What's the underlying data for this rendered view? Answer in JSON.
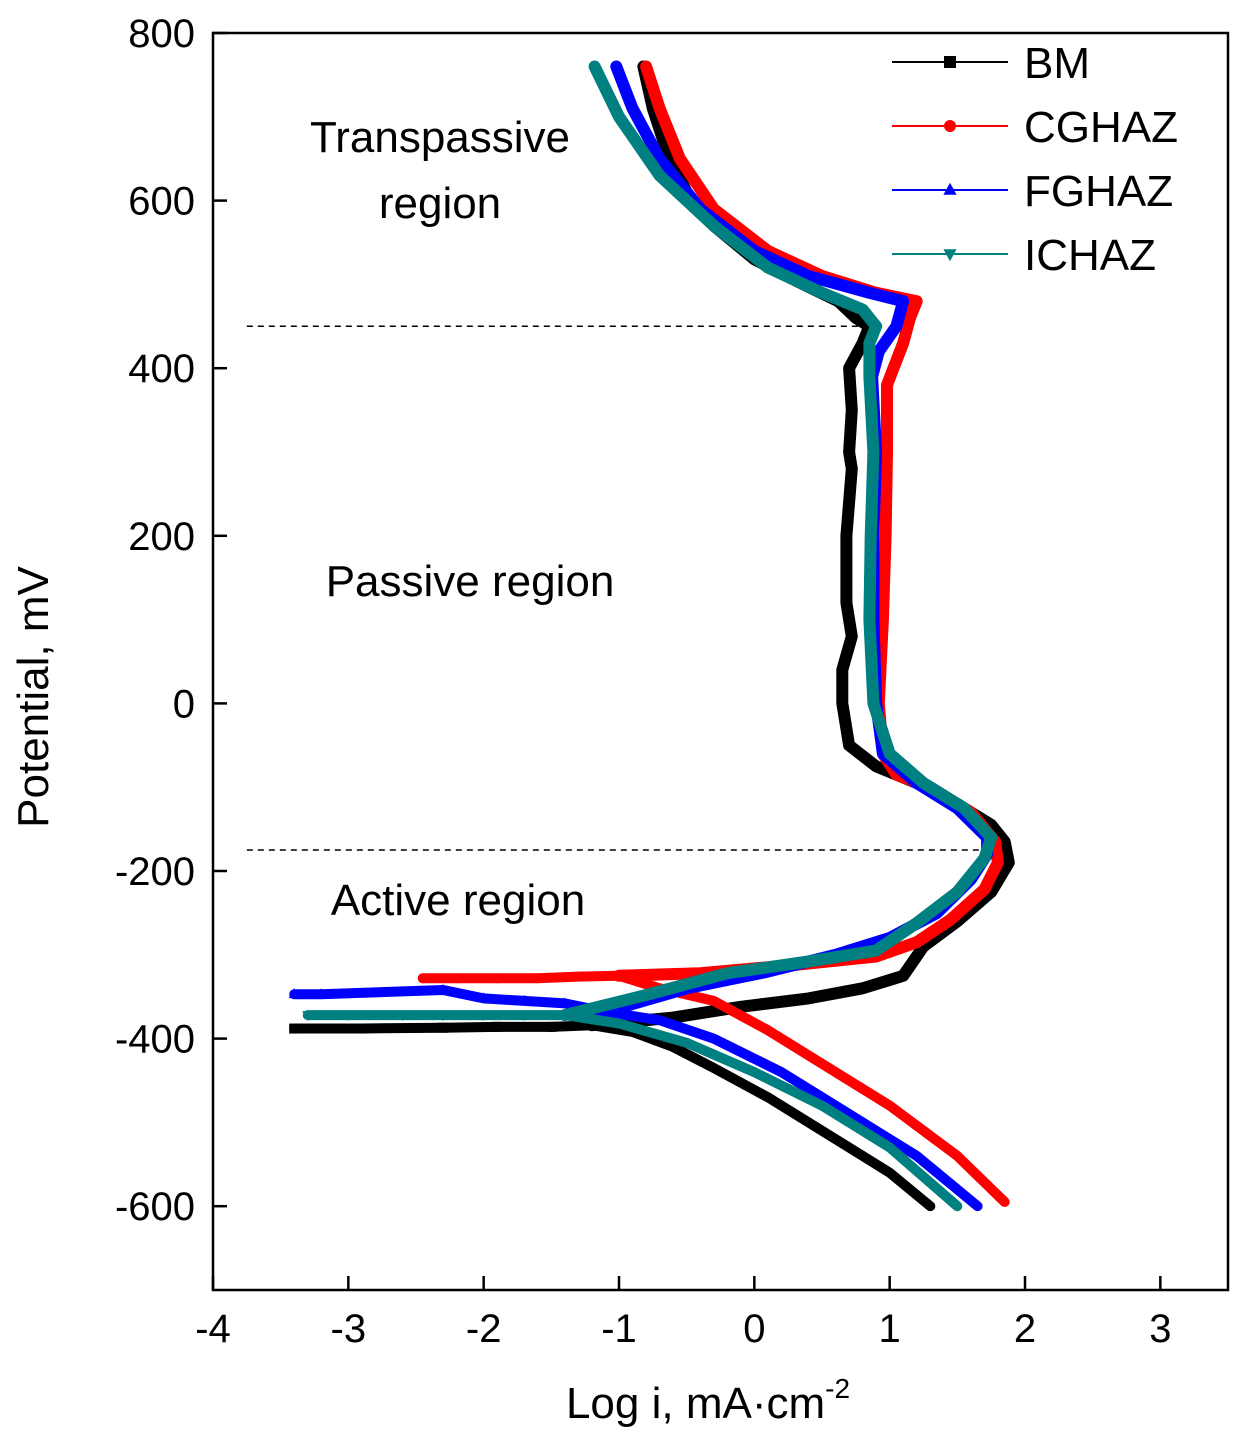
{
  "chart_data": {
    "type": "line",
    "title": "",
    "xlabel": "Log i, mA·cm",
    "xlabel_superscript": "-2",
    "ylabel": "Potential, mV",
    "xlim": [
      -4,
      3.5
    ],
    "ylim": [
      -700,
      800
    ],
    "xticks": [
      -4,
      -3,
      -2,
      -1,
      0,
      1,
      2,
      3
    ],
    "yticks": [
      -600,
      -400,
      -200,
      0,
      200,
      400,
      600,
      800
    ],
    "xtick_labels": [
      "-4",
      "-3",
      "-2",
      "-1",
      "0",
      "1",
      "2",
      "3"
    ],
    "ytick_labels": [
      "-600",
      "-400",
      "-200",
      "0",
      "200",
      "400",
      "600",
      "800"
    ],
    "grid": false,
    "legend_position": "top-right",
    "reference_lines": [
      {
        "style": "dashed",
        "y": 450,
        "x_from": -3.75,
        "x_to": 0.9
      },
      {
        "style": "dashed",
        "y": -175,
        "x_from": -3.75,
        "x_to": 1.75
      }
    ],
    "annotations": [
      {
        "text": "Transpassive",
        "x": -2.2,
        "y": 670
      },
      {
        "text": "region",
        "x": -2.2,
        "y": 590
      },
      {
        "text": "Passive region",
        "x": -2.2,
        "y": 140
      },
      {
        "text": "Active region",
        "x": -2.2,
        "y": -240
      }
    ],
    "series": [
      {
        "name": "BM",
        "color": "#000000",
        "marker": "square",
        "points": [
          [
            -3.4,
            -388
          ],
          [
            -2.9,
            -388
          ],
          [
            -2.3,
            -387
          ],
          [
            -1.9,
            -386
          ],
          [
            -1.5,
            -386
          ],
          [
            -1.2,
            -384
          ],
          [
            -0.9,
            -392
          ],
          [
            -0.6,
            -410
          ],
          [
            -0.3,
            -435
          ],
          [
            0.1,
            -470
          ],
          [
            0.4,
            -500
          ],
          [
            0.7,
            -530
          ],
          [
            1.0,
            -560
          ],
          [
            1.3,
            -600
          ],
          [
            1.3,
            -600
          ]
        ],
        "anodic": [
          [
            -1.2,
            -384
          ],
          [
            -0.6,
            -375
          ],
          [
            -0.1,
            -362
          ],
          [
            0.4,
            -352
          ],
          [
            0.8,
            -340
          ],
          [
            1.1,
            -325
          ],
          [
            1.25,
            -290
          ],
          [
            1.5,
            -260
          ],
          [
            1.75,
            -225
          ],
          [
            1.88,
            -190
          ],
          [
            1.85,
            -165
          ],
          [
            1.75,
            -145
          ],
          [
            1.5,
            -120
          ],
          [
            1.2,
            -95
          ],
          [
            0.9,
            -75
          ],
          [
            0.7,
            -50
          ],
          [
            0.65,
            0
          ],
          [
            0.65,
            40
          ],
          [
            0.72,
            80
          ],
          [
            0.68,
            120
          ],
          [
            0.68,
            200
          ],
          [
            0.72,
            280
          ],
          [
            0.7,
            300
          ],
          [
            0.72,
            350
          ],
          [
            0.7,
            400
          ],
          [
            0.8,
            430
          ],
          [
            0.85,
            450
          ],
          [
            0.75,
            460
          ],
          [
            0.62,
            480
          ],
          [
            0.3,
            505
          ],
          [
            0,
            530
          ],
          [
            -0.3,
            570
          ],
          [
            -0.5,
            610
          ],
          [
            -0.65,
            660
          ],
          [
            -0.75,
            710
          ],
          [
            -0.82,
            760
          ]
        ]
      },
      {
        "name": "CGHAZ",
        "color": "#ff0000",
        "marker": "circle",
        "points": [
          [
            -2.45,
            -328
          ],
          [
            -2.2,
            -328
          ],
          [
            -1.9,
            -328
          ],
          [
            -1.6,
            -328
          ],
          [
            -1.3,
            -326
          ],
          [
            -1.0,
            -325
          ],
          [
            -0.7,
            -340
          ],
          [
            -0.3,
            -355
          ],
          [
            0.1,
            -390
          ],
          [
            0.5,
            -430
          ],
          [
            1.0,
            -480
          ],
          [
            1.5,
            -540
          ],
          [
            1.85,
            -595
          ]
        ],
        "anodic": [
          [
            -1.0,
            -325
          ],
          [
            -0.4,
            -322
          ],
          [
            0.3,
            -312
          ],
          [
            0.9,
            -302
          ],
          [
            1.2,
            -285
          ],
          [
            1.45,
            -258
          ],
          [
            1.7,
            -222
          ],
          [
            1.8,
            -190
          ],
          [
            1.78,
            -165
          ],
          [
            1.6,
            -130
          ],
          [
            1.3,
            -100
          ],
          [
            1.05,
            -85
          ],
          [
            0.95,
            -60
          ],
          [
            0.92,
            0
          ],
          [
            0.95,
            100
          ],
          [
            0.97,
            200
          ],
          [
            0.98,
            300
          ],
          [
            0.98,
            380
          ],
          [
            1.1,
            430
          ],
          [
            1.15,
            460
          ],
          [
            1.2,
            480
          ],
          [
            0.9,
            490
          ],
          [
            0.5,
            510
          ],
          [
            0.1,
            540
          ],
          [
            -0.3,
            590
          ],
          [
            -0.55,
            650
          ],
          [
            -0.7,
            710
          ],
          [
            -0.8,
            760
          ]
        ]
      },
      {
        "name": "FGHAZ",
        "color": "#0000ff",
        "marker": "triangle-up",
        "points": [
          [
            -3.4,
            -347
          ],
          [
            -3.2,
            -347
          ],
          [
            -2.3,
            -342
          ],
          [
            -2.0,
            -352
          ],
          [
            -1.7,
            -355
          ],
          [
            -1.4,
            -358
          ],
          [
            -1.1,
            -368
          ],
          [
            -0.7,
            -378
          ],
          [
            -0.3,
            -400
          ],
          [
            0.2,
            -440
          ],
          [
            0.7,
            -490
          ],
          [
            1.2,
            -540
          ],
          [
            1.65,
            -600
          ]
        ],
        "anodic": [
          [
            -1.1,
            -368
          ],
          [
            -0.5,
            -340
          ],
          [
            0.1,
            -320
          ],
          [
            0.6,
            -300
          ],
          [
            1.0,
            -280
          ],
          [
            1.35,
            -250
          ],
          [
            1.6,
            -210
          ],
          [
            1.72,
            -180
          ],
          [
            1.72,
            -160
          ],
          [
            1.5,
            -125
          ],
          [
            1.2,
            -95
          ],
          [
            0.95,
            -60
          ],
          [
            0.9,
            0
          ],
          [
            0.88,
            100
          ],
          [
            0.88,
            200
          ],
          [
            0.9,
            300
          ],
          [
            0.87,
            390
          ],
          [
            0.92,
            420
          ],
          [
            1.05,
            450
          ],
          [
            1.1,
            480
          ],
          [
            0.85,
            490
          ],
          [
            0.4,
            510
          ],
          [
            0,
            540
          ],
          [
            -0.4,
            590
          ],
          [
            -0.7,
            650
          ],
          [
            -0.9,
            710
          ],
          [
            -1.02,
            760
          ]
        ]
      },
      {
        "name": "ICHAZ",
        "color": "#008080",
        "marker": "triangle-down",
        "points": [
          [
            -3.3,
            -372
          ],
          [
            -3.0,
            -372
          ],
          [
            -2.6,
            -372
          ],
          [
            -2.3,
            -372
          ],
          [
            -2.0,
            -372
          ],
          [
            -1.7,
            -372
          ],
          [
            -1.4,
            -372
          ],
          [
            -1.0,
            -382
          ],
          [
            -0.5,
            -405
          ],
          [
            0.0,
            -440
          ],
          [
            0.5,
            -480
          ],
          [
            1.0,
            -530
          ],
          [
            1.5,
            -600
          ]
        ],
        "anodic": [
          [
            -1.4,
            -372
          ],
          [
            -0.8,
            -348
          ],
          [
            -0.2,
            -322
          ],
          [
            0.4,
            -308
          ],
          [
            0.9,
            -295
          ],
          [
            1.2,
            -262
          ],
          [
            1.5,
            -225
          ],
          [
            1.7,
            -185
          ],
          [
            1.75,
            -160
          ],
          [
            1.55,
            -125
          ],
          [
            1.25,
            -95
          ],
          [
            1.0,
            -60
          ],
          [
            0.88,
            0
          ],
          [
            0.85,
            100
          ],
          [
            0.86,
            200
          ],
          [
            0.88,
            300
          ],
          [
            0.85,
            390
          ],
          [
            0.85,
            430
          ],
          [
            0.9,
            450
          ],
          [
            0.8,
            470
          ],
          [
            0.5,
            490
          ],
          [
            0.1,
            520
          ],
          [
            -0.3,
            570
          ],
          [
            -0.7,
            630
          ],
          [
            -1.0,
            700
          ],
          [
            -1.18,
            760
          ]
        ]
      }
    ]
  }
}
